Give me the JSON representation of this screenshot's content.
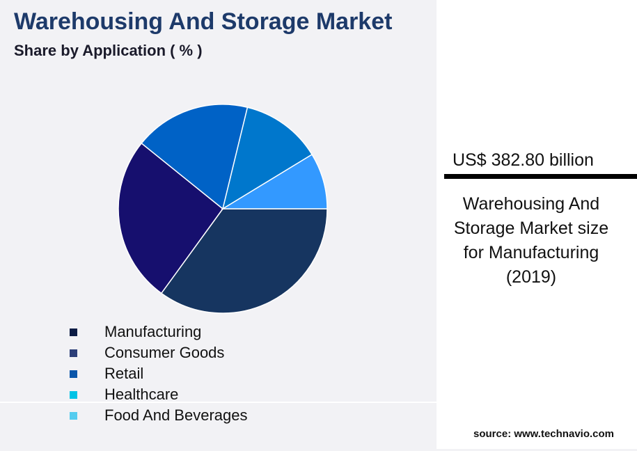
{
  "title": "Warehousing And Storage Market",
  "subtitle": "Share by Application ( % )",
  "chart_data": {
    "type": "pie",
    "title": "Warehousing And Storage Market",
    "subtitle": "Share by Application ( % )",
    "legend_position": "bottom",
    "categories": [
      "Manufacturing",
      "Consumer Goods",
      "Retail",
      "Healthcare",
      "Food And Beverages"
    ],
    "values": [
      35.0,
      25.8,
      18.0,
      12.5,
      8.7
    ],
    "slice_colors": [
      "#163560",
      "#160f6e",
      "#0062c6",
      "#0077cc",
      "#3399ff"
    ],
    "legend_colors": [
      "#0c1c44",
      "#2c3f78",
      "#0a56aa",
      "#00c3e6",
      "#55ccef"
    ]
  },
  "stat": {
    "value": "US$ 382.80 billion",
    "description": "Warehousing And Storage Market size for Manufacturing (2019)"
  },
  "source": "source: www.technavio.com"
}
